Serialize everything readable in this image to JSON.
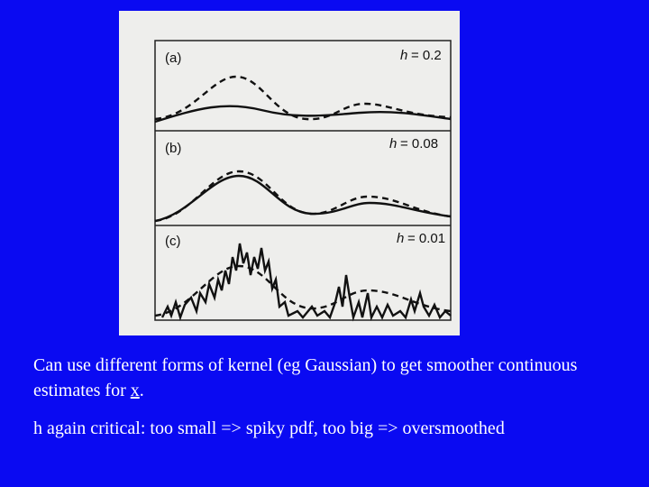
{
  "figure": {
    "panels": [
      {
        "label": "(a)",
        "symbol": "h",
        "setting": "= 0.2"
      },
      {
        "label": "(b)",
        "symbol": "h",
        "setting": "= 0.08"
      },
      {
        "label": "(c)",
        "symbol": "h",
        "setting": "= 0.01"
      }
    ]
  },
  "caption": {
    "line1_before": "Can use different forms of kernel (eg Gaussian) to get smoother continuous estimates for ",
    "line1_var": "x",
    "line1_after": ".",
    "line2": "h again critical: too small => spiky pdf, too big => oversmoothed"
  }
}
